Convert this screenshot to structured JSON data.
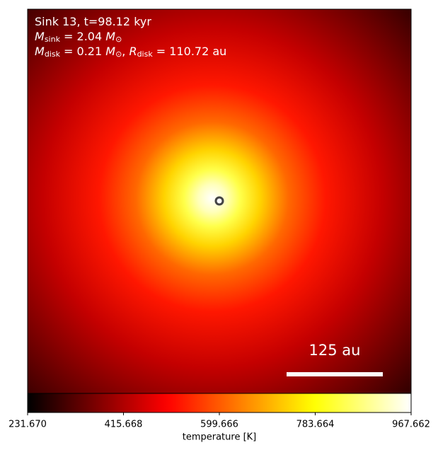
{
  "chart_data": {
    "type": "image",
    "annotations": [
      [
        {
          "text": "Sink 13, t=98.12 kyr",
          "style": "normal"
        }
      ],
      [
        {
          "text": "M",
          "style": "italic"
        },
        {
          "text": "sink",
          "style": "sub"
        },
        {
          "text": " = 2.04 ",
          "style": "normal"
        },
        {
          "text": "M",
          "style": "italic"
        },
        {
          "text": "⊙",
          "style": "sub"
        }
      ],
      [
        {
          "text": "M",
          "style": "italic"
        },
        {
          "text": "disk",
          "style": "sub"
        },
        {
          "text": " = 0.21 ",
          "style": "normal"
        },
        {
          "text": "M",
          "style": "italic"
        },
        {
          "text": "⊙",
          "style": "sub"
        },
        {
          "text": ", ",
          "style": "normal"
        },
        {
          "text": "R",
          "style": "italic"
        },
        {
          "text": "disk",
          "style": "sub"
        },
        {
          "text": " = 110.72 au",
          "style": "normal"
        }
      ]
    ],
    "scale_bar_label": "125 au",
    "colormap": "hot",
    "colorbar": {
      "label": "temperature [K]",
      "lim": [
        231.67,
        967.662
      ],
      "ticks": [
        {
          "value": 231.67,
          "label": "231.670"
        },
        415.668,
        599.666,
        783.664,
        967.662
      ]
    }
  }
}
